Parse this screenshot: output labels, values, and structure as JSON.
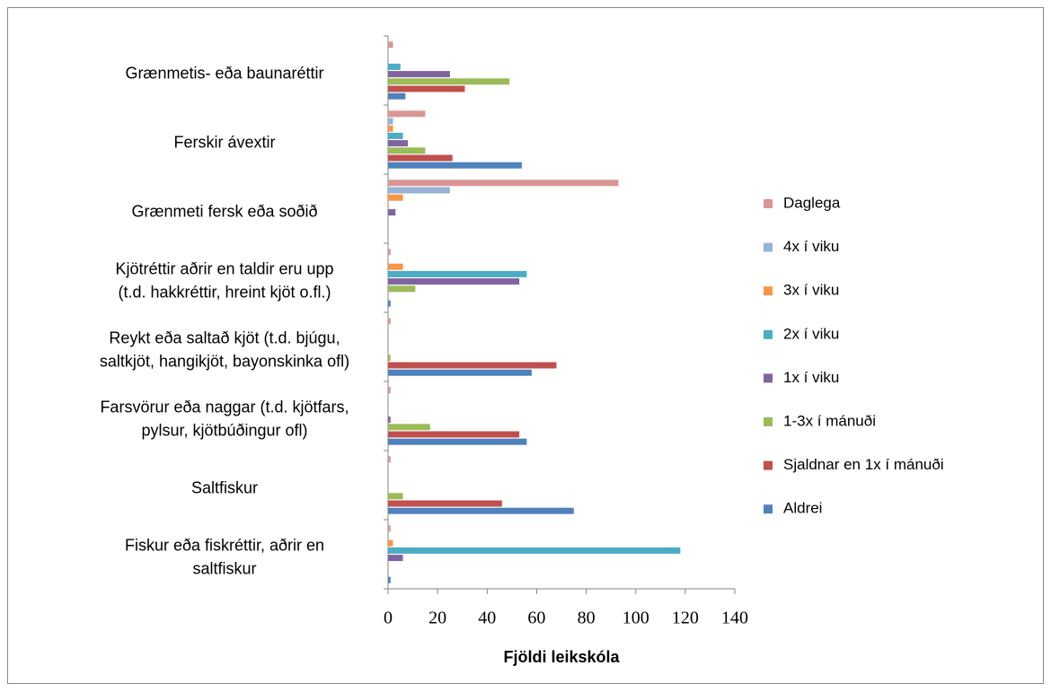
{
  "chart_data": {
    "type": "hbar",
    "x_label": "Fjöldi leikskóla",
    "categories": [
      [
        "Grænmetis- eða baunaréttir"
      ],
      [
        "Ferskir ávextir"
      ],
      [
        "Grænmeti fersk eða soðið"
      ],
      [
        "Kjötréttir aðrir en taldir eru upp",
        "(t.d. hakkréttir, hreint kjöt o.fl.)"
      ],
      [
        "Reykt eða saltað kjöt (t.d. bjúgu,",
        "saltkjöt, hangikjöt, bayonskinka ofl)"
      ],
      [
        "Farsvörur eða naggar (t.d. kjötfars,",
        "pylsur, kjötbúðingur ofl)"
      ],
      [
        "Saltfiskur"
      ],
      [
        "Fiskur eða fiskréttir, aðrir en",
        "saltfiskur"
      ]
    ],
    "series": [
      {
        "name": "Daglega",
        "color": "#d99694",
        "values": [
          2,
          15,
          93,
          1,
          1,
          1,
          1,
          1
        ]
      },
      {
        "name": "4x í viku",
        "color": "#95b3d7",
        "values": [
          0,
          2,
          25,
          0,
          0,
          0,
          0,
          0
        ]
      },
      {
        "name": "3x í viku",
        "color": "#f79646",
        "values": [
          0,
          2,
          6,
          6,
          0,
          0,
          0,
          2
        ]
      },
      {
        "name": "2x í viku",
        "color": "#4bacc6",
        "values": [
          5,
          6,
          0,
          56,
          0,
          0,
          0,
          118
        ]
      },
      {
        "name": "1x í viku",
        "color": "#8064a2",
        "values": [
          25,
          8,
          3,
          53,
          0,
          1,
          0,
          6
        ]
      },
      {
        "name": "1-3x í mánuði",
        "color": "#9bbb59",
        "values": [
          49,
          15,
          0,
          11,
          1,
          17,
          6,
          0
        ]
      },
      {
        "name": "Sjaldnar en 1x í mánuði",
        "color": "#c0504d",
        "values": [
          31,
          26,
          0,
          0,
          68,
          53,
          46,
          0
        ]
      },
      {
        "name": "Aldrei",
        "color": "#4f81bd",
        "values": [
          7,
          54,
          0,
          1,
          58,
          56,
          75,
          1
        ]
      }
    ],
    "xlim": [
      0,
      140
    ],
    "xticks": [
      0,
      20,
      40,
      60,
      80,
      100,
      120,
      140
    ],
    "legend": "right"
  }
}
